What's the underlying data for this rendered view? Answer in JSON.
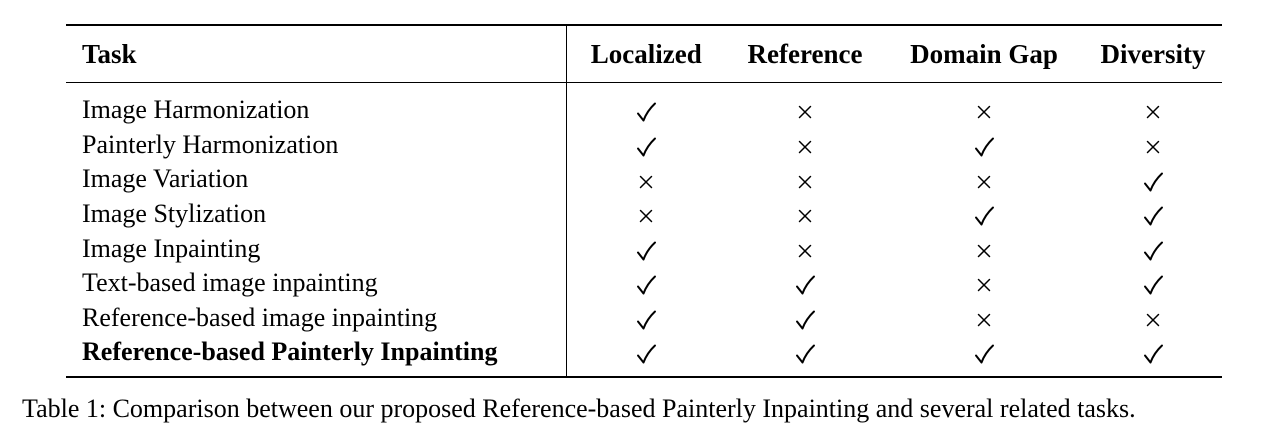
{
  "table": {
    "headers": [
      "Task",
      "Localized",
      "Reference",
      "Domain Gap",
      "Diversity"
    ],
    "rows": [
      {
        "task": "Image Harmonization",
        "bold": false,
        "marks": [
          "check",
          "cross",
          "cross",
          "cross"
        ]
      },
      {
        "task": "Painterly Harmonization",
        "bold": false,
        "marks": [
          "check",
          "cross",
          "check",
          "cross"
        ]
      },
      {
        "task": "Image Variation",
        "bold": false,
        "marks": [
          "cross",
          "cross",
          "cross",
          "check"
        ]
      },
      {
        "task": "Image Stylization",
        "bold": false,
        "marks": [
          "cross",
          "cross",
          "check",
          "check"
        ]
      },
      {
        "task": "Image Inpainting",
        "bold": false,
        "marks": [
          "check",
          "cross",
          "cross",
          "check"
        ]
      },
      {
        "task": "Text-based image inpainting",
        "bold": false,
        "marks": [
          "check",
          "check",
          "cross",
          "check"
        ]
      },
      {
        "task": "Reference-based image inpainting",
        "bold": false,
        "marks": [
          "check",
          "check",
          "cross",
          "cross"
        ]
      },
      {
        "task": "Reference-based Painterly Inpainting",
        "bold": true,
        "marks": [
          "check",
          "check",
          "check",
          "check"
        ]
      }
    ]
  },
  "caption": "Table 1: Comparison between our proposed Reference-based Painterly Inpainting and several related tasks."
}
